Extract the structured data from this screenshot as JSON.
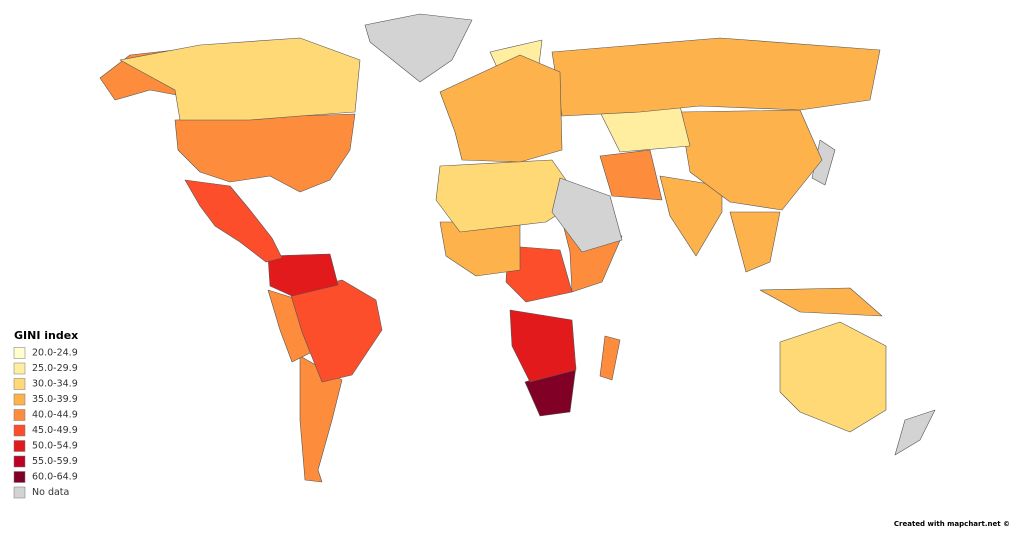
{
  "legend": {
    "title": "GINI index",
    "items": [
      {
        "label": "20.0-24.9",
        "color": "#ffffcc"
      },
      {
        "label": "25.0-29.9",
        "color": "#ffeda0"
      },
      {
        "label": "30.0-34.9",
        "color": "#fed976"
      },
      {
        "label": "35.0-39.9",
        "color": "#feb24c"
      },
      {
        "label": "40.0-44.9",
        "color": "#fd8d3c"
      },
      {
        "label": "45.0-49.9",
        "color": "#fc4e2a"
      },
      {
        "label": "50.0-54.9",
        "color": "#e31a1c"
      },
      {
        "label": "55.0-59.9",
        "color": "#bd0026"
      },
      {
        "label": "60.0-64.9",
        "color": "#800026"
      },
      {
        "label": "No data",
        "color": "#d3d3d3"
      }
    ]
  },
  "credit": "Created with mapchart.net ©"
}
